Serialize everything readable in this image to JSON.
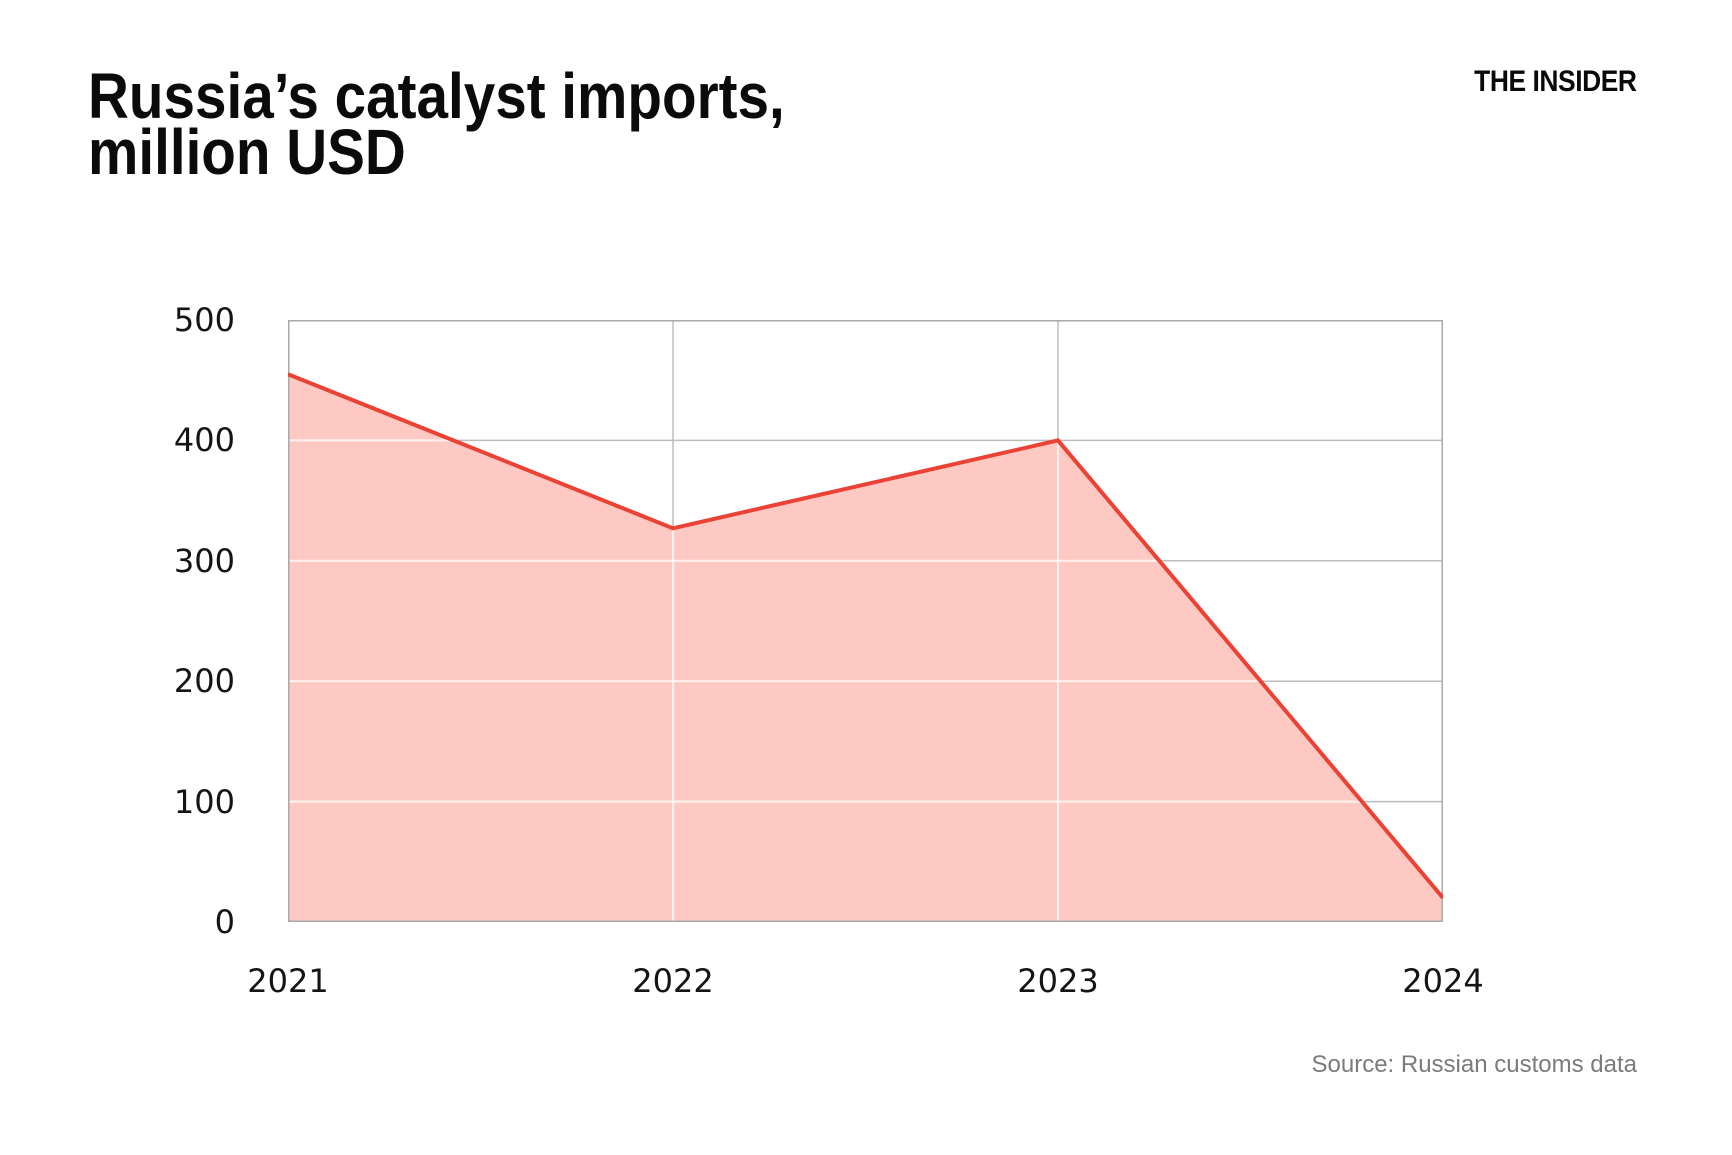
{
  "header": {
    "title_line1": "Russia’s catalyst imports,",
    "title_line2": "million USD",
    "brand": "THE INSIDER"
  },
  "footer": {
    "source": "Source: Russian customs data"
  },
  "chart_data": {
    "type": "area",
    "title": "Russia’s catalyst imports, million USD",
    "categories": [
      "2021",
      "2022",
      "2023",
      "2024"
    ],
    "series": [
      {
        "name": "Catalyst imports, million USD",
        "values": [
          455,
          327,
          400,
          20
        ]
      }
    ],
    "xlabel": "",
    "ylabel": "",
    "ylim": [
      0,
      500
    ],
    "ytick_interval": 100,
    "yticks": [
      0,
      100,
      200,
      300,
      400,
      500
    ],
    "grid": true,
    "legend": "none",
    "colors": {
      "line": "#ea4336",
      "fill": "#fec9c3",
      "grid": "#bdbdbd",
      "grid_over_fill": "rgba(255,255,255,0.7)",
      "border": "#a9a9a9",
      "tick_text": "#141414",
      "source_text": "#7b7b7b"
    }
  }
}
